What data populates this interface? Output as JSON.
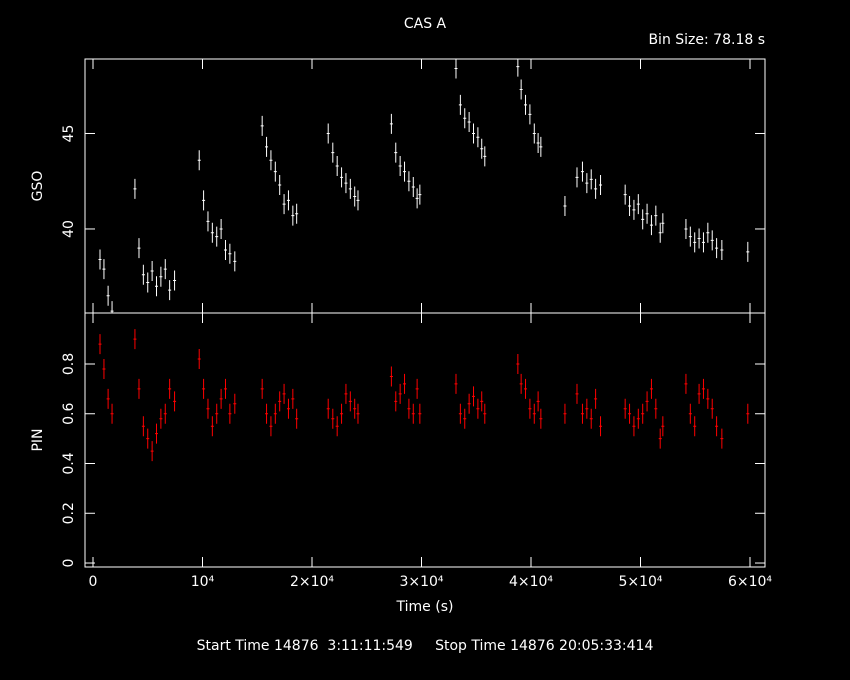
{
  "chart_data": [
    {
      "type": "scatter",
      "title": "CAS A",
      "annotation": "Bin Size: 78.18 s",
      "ylabel": "GSO",
      "color": "#ffffff",
      "x": [
        640,
        1000,
        1380,
        1740,
        3830,
        4200,
        4600,
        5000,
        5400,
        5800,
        6200,
        6600,
        7000,
        7450,
        9700,
        10100,
        10500,
        10900,
        11300,
        11700,
        12100,
        12500,
        12950,
        15450,
        15850,
        16250,
        16650,
        17050,
        17450,
        17850,
        18250,
        18600,
        21480,
        21900,
        22300,
        22700,
        23100,
        23500,
        23900,
        24200,
        27250,
        27650,
        28050,
        28450,
        28850,
        29250,
        29600,
        29850,
        33150,
        33550,
        33950,
        34350,
        34750,
        35150,
        35500,
        35780,
        38800,
        39100,
        39500,
        39900,
        40300,
        40650,
        40900,
        43100,
        44200,
        44700,
        45100,
        45500,
        45900,
        46350,
        48600,
        49000,
        49400,
        49800,
        50200,
        50600,
        51000,
        51400,
        51800,
        52040,
        54150,
        54550,
        54950,
        55350,
        55750,
        56150,
        56550,
        56950,
        57430,
        59800
      ],
      "values": [
        38.4,
        37.9,
        36.5,
        35.7,
        42.1,
        39.0,
        37.6,
        37.2,
        37.8,
        37.0,
        37.5,
        37.9,
        36.8,
        37.3,
        43.6,
        41.5,
        40.4,
        39.8,
        39.6,
        40.0,
        38.9,
        38.7,
        38.3,
        45.4,
        44.3,
        43.6,
        43.0,
        42.3,
        41.3,
        41.5,
        40.7,
        40.8,
        45.0,
        44.0,
        43.3,
        42.7,
        42.4,
        42.1,
        41.7,
        41.5,
        45.5,
        44.0,
        43.3,
        43.0,
        42.5,
        42.2,
        41.6,
        41.8,
        48.4,
        46.5,
        45.8,
        45.6,
        45.0,
        44.8,
        44.2,
        43.8,
        48.5,
        47.3,
        46.5,
        46.0,
        45.0,
        44.5,
        44.3,
        41.2,
        42.7,
        43.0,
        42.4,
        42.6,
        42.1,
        42.3,
        41.8,
        41.2,
        41.0,
        41.3,
        40.5,
        40.8,
        40.2,
        40.7,
        39.8,
        40.3,
        40.0,
        39.6,
        39.3,
        39.5,
        39.3,
        39.8,
        39.4,
        39.0,
        38.9,
        38.8
      ],
      "xlim": [
        -730,
        61370
      ],
      "ylim": [
        35.6,
        48.9
      ],
      "yticks": [
        40,
        45
      ]
    },
    {
      "type": "scatter",
      "xlabel": "Time (s)",
      "ylabel": "PIN",
      "color": "#ff0000",
      "note": "Start Time 14876  3:11:11:549     Stop Time 14876 20:05:33:414",
      "x": [
        640,
        1000,
        1380,
        1740,
        3830,
        4200,
        4600,
        5000,
        5400,
        5800,
        6200,
        6600,
        7000,
        7450,
        9700,
        10100,
        10500,
        10900,
        11300,
        11700,
        12100,
        12500,
        12950,
        15450,
        15850,
        16250,
        16650,
        17050,
        17450,
        17850,
        18250,
        18600,
        21480,
        21900,
        22300,
        22700,
        23100,
        23500,
        23900,
        24200,
        27250,
        27650,
        28050,
        28450,
        28850,
        29250,
        29600,
        29850,
        33150,
        33550,
        33950,
        34350,
        34750,
        35150,
        35500,
        35780,
        38800,
        39100,
        39500,
        39900,
        40300,
        40650,
        40900,
        43100,
        44200,
        44700,
        45100,
        45500,
        45900,
        46350,
        48600,
        49000,
        49400,
        49800,
        50200,
        50600,
        51000,
        51400,
        51800,
        52040,
        54150,
        54550,
        54950,
        55350,
        55750,
        56150,
        56550,
        56950,
        57430,
        59800
      ],
      "values": [
        0.88,
        0.78,
        0.66,
        0.6,
        0.9,
        0.7,
        0.55,
        0.5,
        0.45,
        0.52,
        0.58,
        0.6,
        0.7,
        0.65,
        0.82,
        0.7,
        0.62,
        0.55,
        0.6,
        0.66,
        0.7,
        0.6,
        0.64,
        0.7,
        0.6,
        0.55,
        0.6,
        0.65,
        0.68,
        0.62,
        0.66,
        0.58,
        0.62,
        0.58,
        0.55,
        0.6,
        0.68,
        0.65,
        0.62,
        0.6,
        0.75,
        0.65,
        0.68,
        0.72,
        0.62,
        0.6,
        0.7,
        0.6,
        0.72,
        0.6,
        0.58,
        0.64,
        0.67,
        0.62,
        0.65,
        0.6,
        0.8,
        0.72,
        0.7,
        0.62,
        0.6,
        0.65,
        0.58,
        0.6,
        0.68,
        0.6,
        0.62,
        0.58,
        0.66,
        0.55,
        0.62,
        0.6,
        0.55,
        0.58,
        0.6,
        0.65,
        0.7,
        0.62,
        0.5,
        0.55,
        0.72,
        0.6,
        0.55,
        0.68,
        0.7,
        0.66,
        0.62,
        0.55,
        0.5,
        0.6
      ],
      "xlim": [
        -730,
        61370
      ],
      "ylim": [
        -0.016,
        1.005
      ],
      "yticks": [
        0,
        0.2,
        0.4,
        0.6,
        0.8
      ],
      "xticks": [
        0,
        {
          "value": 10000,
          "label": "10⁴"
        },
        {
          "value": 20000,
          "label": "2×10⁴"
        },
        {
          "value": 30000,
          "label": "3×10⁴"
        },
        {
          "value": 40000,
          "label": "4×10⁴"
        },
        {
          "value": 50000,
          "label": "5×10⁴"
        },
        {
          "value": 60000,
          "label": "6×10⁴"
        }
      ]
    }
  ]
}
